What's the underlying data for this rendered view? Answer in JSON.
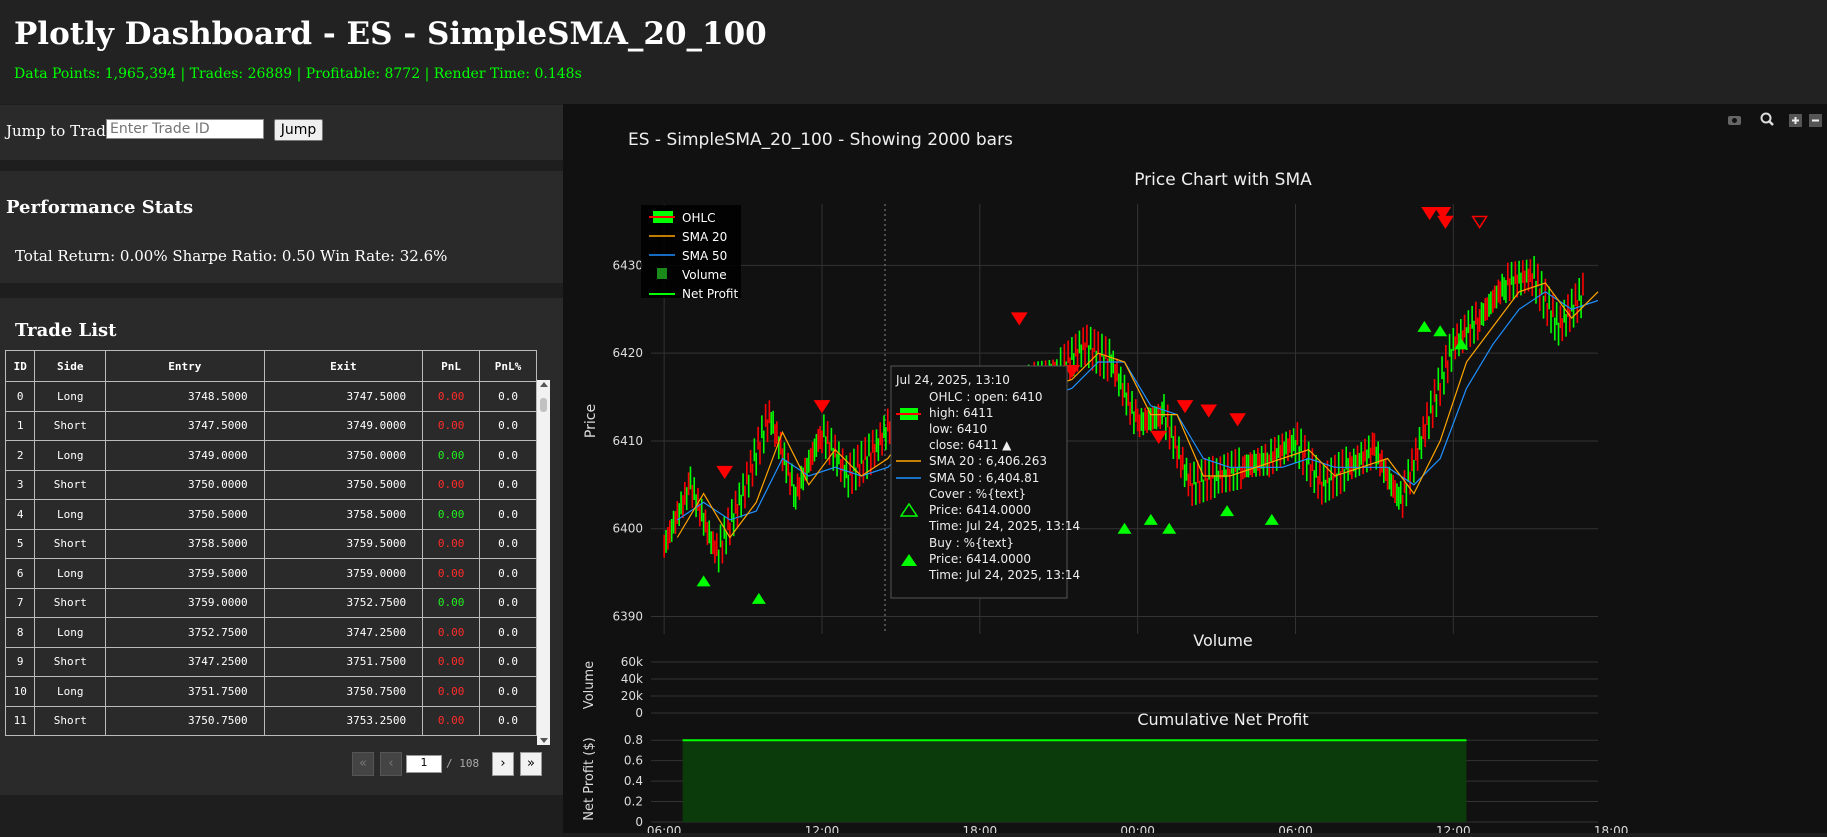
{
  "header": {
    "title": "Plotly Dashboard - ES - SimpleSMA_20_100",
    "subtitle": "Data Points: 1,965,394 | Trades: 26889 | Profitable: 8772 | Render Time: 0.148s"
  },
  "jump": {
    "label": "Jump to Trade:",
    "placeholder": "Enter Trade ID",
    "button": "Jump"
  },
  "performance": {
    "heading": "Performance Stats",
    "stats": "Total Return: 0.00% Sharpe Ratio: 0.50 Win Rate: 32.6%"
  },
  "trade_list": {
    "heading": "Trade List",
    "columns": [
      "ID",
      "Side",
      "Entry",
      "Exit",
      "PnL",
      "PnL%"
    ],
    "rows": [
      {
        "id": "0",
        "side": "Long",
        "entry": "3748.5000",
        "exit": "3747.5000",
        "pnl": "0.00",
        "pnl_pct": "0.0",
        "win": false
      },
      {
        "id": "1",
        "side": "Short",
        "entry": "3747.5000",
        "exit": "3749.0000",
        "pnl": "0.00",
        "pnl_pct": "0.0",
        "win": false
      },
      {
        "id": "2",
        "side": "Long",
        "entry": "3749.0000",
        "exit": "3750.0000",
        "pnl": "0.00",
        "pnl_pct": "0.0",
        "win": true
      },
      {
        "id": "3",
        "side": "Short",
        "entry": "3750.0000",
        "exit": "3750.5000",
        "pnl": "0.00",
        "pnl_pct": "0.0",
        "win": false
      },
      {
        "id": "4",
        "side": "Long",
        "entry": "3750.5000",
        "exit": "3758.5000",
        "pnl": "0.00",
        "pnl_pct": "0.0",
        "win": true
      },
      {
        "id": "5",
        "side": "Short",
        "entry": "3758.5000",
        "exit": "3759.5000",
        "pnl": "0.00",
        "pnl_pct": "0.0",
        "win": false
      },
      {
        "id": "6",
        "side": "Long",
        "entry": "3759.5000",
        "exit": "3759.0000",
        "pnl": "0.00",
        "pnl_pct": "0.0",
        "win": false
      },
      {
        "id": "7",
        "side": "Short",
        "entry": "3759.0000",
        "exit": "3752.7500",
        "pnl": "0.00",
        "pnl_pct": "0.0",
        "win": true
      },
      {
        "id": "8",
        "side": "Long",
        "entry": "3752.7500",
        "exit": "3747.2500",
        "pnl": "0.00",
        "pnl_pct": "0.0",
        "win": false
      },
      {
        "id": "9",
        "side": "Short",
        "entry": "3747.2500",
        "exit": "3751.7500",
        "pnl": "0.00",
        "pnl_pct": "0.0",
        "win": false
      },
      {
        "id": "10",
        "side": "Long",
        "entry": "3751.7500",
        "exit": "3750.7500",
        "pnl": "0.00",
        "pnl_pct": "0.0",
        "win": false
      },
      {
        "id": "11",
        "side": "Short",
        "entry": "3750.7500",
        "exit": "3753.2500",
        "pnl": "0.00",
        "pnl_pct": "0.0",
        "win": false
      }
    ],
    "pager": {
      "first": "«",
      "prev": "‹",
      "current": "1",
      "total": "/ 108",
      "next": "›",
      "last": "»"
    }
  },
  "chart_data": {
    "type": "line",
    "title": "ES - SimpleSMA_20_100 - Showing 2000 bars",
    "panels": [
      {
        "title": "Price Chart with SMA",
        "ylabel": "Price",
        "yticks": [
          "6430",
          "6420",
          "6410",
          "6400",
          "6390"
        ],
        "ylim": [
          6388,
          6437
        ],
        "legend": [
          "OHLC",
          "SMA 20",
          "SMA 50",
          "Volume",
          "Net Profit"
        ],
        "x_hours": [
          6.0,
          7.0,
          8.0,
          9.0,
          10.0,
          11.0,
          12.0,
          13.0,
          14.0,
          15.0,
          16.0,
          17.0,
          18.0,
          19.0,
          20.0,
          21.0,
          22.0,
          23.0,
          24.0,
          25.0,
          26.0,
          27.0,
          28.0,
          29.0,
          30.0,
          31.0,
          32.0,
          33.0,
          34.0,
          35.0,
          36.0,
          37.0,
          38.0,
          39.0,
          40.0,
          41.0
        ],
        "series": [
          {
            "name": "OHLC",
            "values": [
              6398,
              6405,
              6397,
              6404,
              6413,
              6404,
              6411,
              6406,
              6409,
              6414,
              6412,
              6409,
              6413,
              6415,
              6417,
              6418,
              6421,
              6419,
              6412,
              6413,
              6405,
              6406,
              6407,
              6408,
              6410,
              6405,
              6407,
              6409,
              6403,
              6412,
              6421,
              6424,
              6428,
              6429,
              6423,
              6427
            ]
          },
          {
            "name": "SMA 20",
            "values": [
              6399,
              6404,
              6399,
              6403,
              6411,
              6405,
              6409,
              6406,
              6408,
              6412,
              6411,
              6409,
              6412,
              6414,
              6416,
              6417,
              6420,
              6419,
              6413,
              6413,
              6406,
              6406,
              6407,
              6408,
              6409,
              6406,
              6407,
              6408,
              6404,
              6410,
              6419,
              6423,
              6427,
              6428,
              6424,
              6427
            ]
          },
          {
            "name": "SMA 50",
            "values": [
              6401,
              6403,
              6401,
              6402,
              6408,
              6406,
              6407,
              6406,
              6407,
              6410,
              6410,
              6410,
              6411,
              6413,
              6415,
              6416,
              6419,
              6419,
              6414,
              6413,
              6408,
              6407,
              6407,
              6407,
              6408,
              6407,
              6407,
              6407,
              6405,
              6408,
              6416,
              6421,
              6425,
              6427,
              6425,
              6426
            ]
          }
        ],
        "markers": {
          "sell": [
            [
              8.3,
              6406.5
            ],
            [
              12.0,
              6414
            ],
            [
              19.5,
              6424
            ],
            [
              21.5,
              6418
            ],
            [
              24.8,
              6410.5
            ],
            [
              25.8,
              6414
            ],
            [
              26.7,
              6413.5
            ],
            [
              27.8,
              6412.5
            ],
            [
              35.1,
              6436
            ],
            [
              35.6,
              6436
            ],
            [
              35.7,
              6435
            ],
            [
              37.0,
              6435
            ]
          ],
          "buy": [
            [
              7.5,
              6394
            ],
            [
              9.6,
              6392
            ],
            [
              21.0,
              6407
            ],
            [
              23.5,
              6400
            ],
            [
              24.5,
              6401
            ],
            [
              25.2,
              6400
            ],
            [
              27.4,
              6402
            ],
            [
              29.1,
              6401
            ],
            [
              34.9,
              6423
            ],
            [
              35.5,
              6422.5
            ],
            [
              36.3,
              6421
            ]
          ]
        },
        "tooltip": [
          "Jul 24, 2025, 13:10",
          "OHLC : open: 6410",
          "high: 6411",
          "low: 6410",
          "close: 6411 ▲",
          "SMA 20 : 6,406.263",
          "SMA 50 : 6,404.81",
          "Cover : %{text}",
          "Price: 6414.0000",
          "Time: Jul 24, 2025, 13:14",
          "Buy : %{text}",
          "Price: 6414.0000",
          "Time: Jul 24, 2025, 13:14"
        ]
      },
      {
        "title": "Volume",
        "ylabel": "Volume",
        "yticks": [
          "60k",
          "40k",
          "20k",
          "0"
        ]
      },
      {
        "title": "Cumulative Net Profit",
        "ylabel": "Net Profit ($)",
        "yticks": [
          "0.8",
          "0.6",
          "0.4",
          "0.2",
          "0"
        ],
        "ylim": [
          0,
          0.9
        ],
        "value": 0.8
      }
    ],
    "xticks": [
      "06:00",
      "12:00",
      "18:00",
      "00:00",
      "06:00",
      "12:00",
      "18:00"
    ],
    "colors": {
      "up": "#00ff00",
      "down": "#ff0000",
      "sma20": "#ffa500",
      "sma50": "#1e90ff",
      "profit": "#00ff00"
    }
  }
}
